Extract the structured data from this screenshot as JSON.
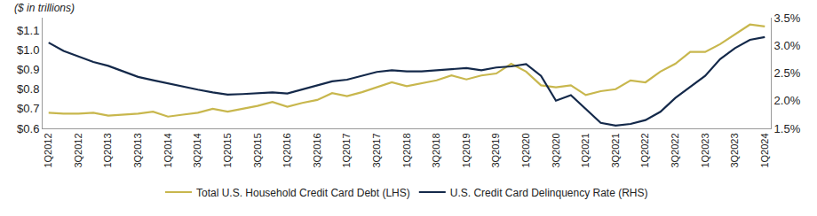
{
  "chart_data": {
    "type": "line",
    "ylabel": "($ in trillions)",
    "categories": [
      "1Q2012",
      null,
      "3Q2012",
      null,
      "1Q2013",
      null,
      "3Q2013",
      null,
      "1Q2014",
      null,
      "3Q2014",
      null,
      "1Q2015",
      null,
      "3Q2015",
      null,
      "1Q2016",
      null,
      "3Q2016",
      null,
      "1Q2017",
      null,
      "3Q2017",
      null,
      "1Q2018",
      null,
      "3Q2018",
      null,
      "1Q2019",
      null,
      "3Q2019",
      null,
      "1Q2020",
      null,
      "3Q2020",
      null,
      "1Q2021",
      null,
      "3Q2021",
      null,
      "1Q2022",
      null,
      "3Q2022",
      null,
      "1Q2023",
      null,
      "3Q2023",
      null,
      "1Q2024"
    ],
    "series": [
      {
        "name": "Total U.S. Household Credit Card Debt (LHS)",
        "color": "#C8B74D",
        "line_style": "solid",
        "values": [
          0.68,
          0.675,
          0.675,
          0.68,
          0.665,
          0.67,
          0.675,
          0.685,
          0.66,
          0.67,
          0.68,
          0.7,
          0.685,
          0.7,
          0.715,
          0.735,
          0.71,
          0.73,
          0.745,
          0.78,
          0.765,
          0.785,
          0.81,
          0.835,
          0.815,
          0.83,
          0.845,
          0.87,
          0.85,
          0.87,
          0.88,
          0.93,
          0.89,
          0.82,
          0.81,
          0.82,
          0.77,
          0.79,
          0.8,
          0.845,
          0.835,
          0.89,
          0.93,
          0.99,
          0.99,
          1.03,
          1.08,
          1.13,
          1.12
        ]
      },
      {
        "name": "U.S. Credit Card Delinquency Rate (RHS)",
        "color": "#14294A",
        "line_style": "solid",
        "axis": "y2",
        "values": [
          3.05,
          2.9,
          2.8,
          2.7,
          2.63,
          2.53,
          2.43,
          2.37,
          2.31,
          2.26,
          2.2,
          2.15,
          2.11,
          2.12,
          2.14,
          2.15,
          2.13,
          2.2,
          2.28,
          2.35,
          2.38,
          2.45,
          2.52,
          2.55,
          2.53,
          2.53,
          2.55,
          2.57,
          2.59,
          2.55,
          2.6,
          2.62,
          2.66,
          2.45,
          2.0,
          2.1,
          1.85,
          1.6,
          1.55,
          1.58,
          1.65,
          1.8,
          2.05,
          2.25,
          2.45,
          2.75,
          2.95,
          3.1,
          3.15
        ]
      }
    ],
    "ylim": [
      0.6,
      1.165
    ],
    "yticks": [
      {
        "value": 0.6,
        "label": "$0.6"
      },
      {
        "value": 0.7,
        "label": "$0.7"
      },
      {
        "value": 0.8,
        "label": "$0.8"
      },
      {
        "value": 0.9,
        "label": "$0.9"
      },
      {
        "value": 1.0,
        "label": "$1.0"
      },
      {
        "value": 1.1,
        "label": "$1.1"
      }
    ],
    "y2lim": [
      1.5,
      3.5
    ],
    "y2ticks": [
      {
        "value": 1.5,
        "label": "1.5%"
      },
      {
        "value": 2.0,
        "label": "2.0%"
      },
      {
        "value": 2.5,
        "label": "2.5%"
      },
      {
        "value": 3.0,
        "label": "3.0%"
      },
      {
        "value": 3.5,
        "label": "3.5%"
      }
    ],
    "grid": false,
    "legend": "bottom"
  }
}
